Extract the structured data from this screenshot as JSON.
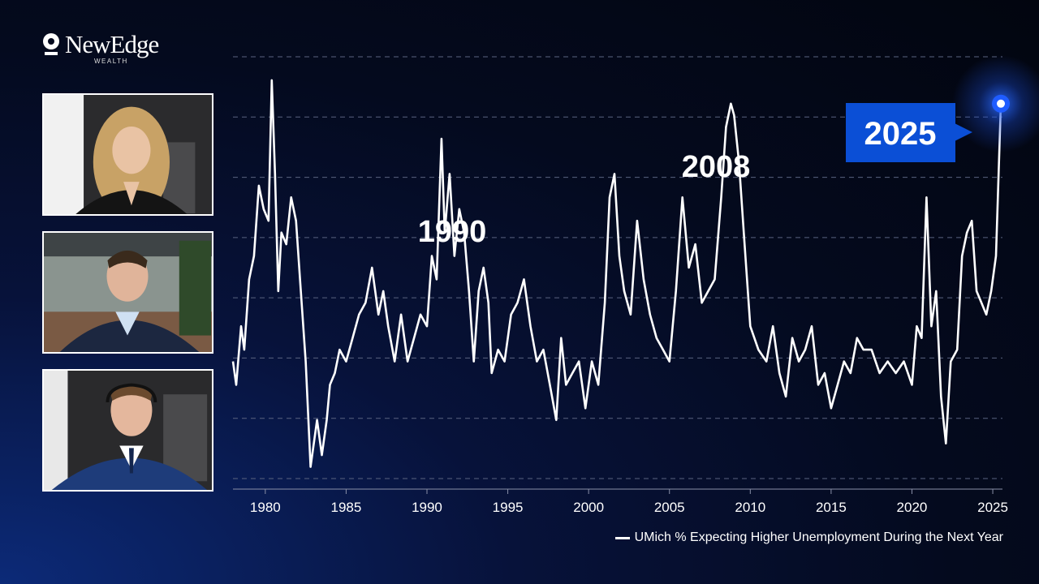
{
  "brand": {
    "name": "NewEdge",
    "sub": "WEALTH"
  },
  "participants": [
    {
      "name": "",
      "role": "video-tile"
    },
    {
      "name": "",
      "role": "video-tile"
    },
    {
      "name": "",
      "role": "video-tile"
    }
  ],
  "colors": {
    "line": "#ffffff",
    "callout": "#0b4fd6",
    "grid": "#5a6380",
    "background": "#040a1e"
  },
  "chart_data": {
    "type": "line",
    "title": "",
    "xlabel": "",
    "ylabel": "",
    "xlim": [
      1978,
      2025.6
    ],
    "ylim": [
      14,
      50
    ],
    "grid": true,
    "x_ticks": [
      1980,
      1985,
      1990,
      1995,
      2000,
      2005,
      2010,
      2015,
      2020,
      2025
    ],
    "series": [
      {
        "name": "UMich % Expecting Higher Unemployment During the Next Year",
        "x": [
          1978.0,
          1978.2,
          1978.5,
          1978.7,
          1979.0,
          1979.3,
          1979.6,
          1979.9,
          1980.2,
          1980.4,
          1980.6,
          1980.8,
          1981.0,
          1981.3,
          1981.6,
          1981.9,
          1982.2,
          1982.5,
          1982.8,
          1983.0,
          1983.2,
          1983.5,
          1983.8,
          1984.0,
          1984.3,
          1984.6,
          1985.0,
          1985.4,
          1985.8,
          1986.2,
          1986.6,
          1987.0,
          1987.3,
          1987.6,
          1988.0,
          1988.4,
          1988.8,
          1989.2,
          1989.6,
          1990.0,
          1990.3,
          1990.6,
          1990.9,
          1991.1,
          1991.4,
          1991.7,
          1992.0,
          1992.3,
          1992.6,
          1992.9,
          1993.2,
          1993.5,
          1993.8,
          1994.0,
          1994.4,
          1994.8,
          1995.2,
          1995.6,
          1996.0,
          1996.4,
          1996.8,
          1997.2,
          1997.6,
          1998.0,
          1998.3,
          1998.6,
          1999.0,
          1999.4,
          1999.8,
          2000.2,
          2000.6,
          2001.0,
          2001.3,
          2001.6,
          2001.9,
          2002.2,
          2002.6,
          2003.0,
          2003.4,
          2003.8,
          2004.2,
          2004.6,
          2005.0,
          2005.4,
          2005.8,
          2006.2,
          2006.6,
          2007.0,
          2007.4,
          2007.8,
          2008.2,
          2008.5,
          2008.8,
          2009.0,
          2009.3,
          2009.6,
          2010.0,
          2010.5,
          2011.0,
          2011.4,
          2011.8,
          2012.2,
          2012.6,
          2013.0,
          2013.4,
          2013.8,
          2014.2,
          2014.6,
          2015.0,
          2015.4,
          2015.8,
          2016.2,
          2016.6,
          2017.0,
          2017.5,
          2018.0,
          2018.5,
          2019.0,
          2019.5,
          2020.0,
          2020.3,
          2020.6,
          2020.9,
          2021.2,
          2021.5,
          2021.8,
          2022.1,
          2022.4,
          2022.8,
          2023.1,
          2023.4,
          2023.7,
          2024.0,
          2024.3,
          2024.6,
          2024.9,
          2025.2,
          2025.5
        ],
        "y": [
          24,
          22,
          27,
          25,
          31,
          33,
          39,
          37,
          36,
          48,
          40,
          30,
          35,
          34,
          38,
          36,
          30,
          24,
          15,
          17,
          19,
          16,
          19,
          22,
          23,
          25,
          24,
          26,
          28,
          29,
          32,
          28,
          30,
          27,
          24,
          28,
          24,
          26,
          28,
          27,
          33,
          31,
          43,
          35,
          40,
          33,
          37,
          35,
          30,
          24,
          30,
          32,
          29,
          23,
          25,
          24,
          28,
          29,
          31,
          27,
          24,
          25,
          22,
          19,
          26,
          22,
          23,
          24,
          20,
          24,
          22,
          29,
          38,
          40,
          33,
          30,
          28,
          36,
          31,
          28,
          26,
          25,
          24,
          30,
          38,
          32,
          34,
          29,
          30,
          31,
          38,
          44,
          46,
          45,
          41,
          35,
          27,
          25,
          24,
          27,
          23,
          21,
          26,
          24,
          25,
          27,
          22,
          23,
          20,
          22,
          24,
          23,
          26,
          25,
          25,
          23,
          24,
          23,
          24,
          22,
          27,
          26,
          38,
          27,
          30,
          21,
          17,
          24,
          25,
          33,
          35,
          36,
          30,
          29,
          28,
          30,
          33,
          46
        ]
      }
    ],
    "annotations": [
      {
        "label": "1990",
        "x": 1991.0
      },
      {
        "label": "2008",
        "x": 2008.8
      },
      {
        "label": "2025",
        "x": 2025.5
      }
    ],
    "legend_position": "bottom-right"
  }
}
